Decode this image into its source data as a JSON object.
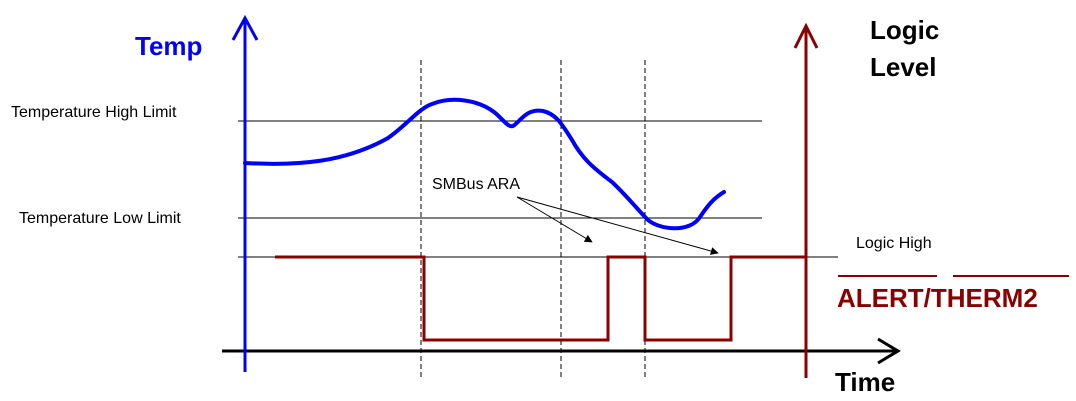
{
  "labels": {
    "temp_axis": "Temp",
    "logic_axis_line1": "Logic",
    "logic_axis_line2": "Level",
    "time_axis": "Time",
    "temp_high_limit": "Temperature High Limit",
    "temp_low_limit": "Temperature Low Limit",
    "logic_high": "Logic High",
    "smbus_ara": "SMBus ARA",
    "alert_signal": "ALERT/THERM2"
  },
  "colors": {
    "temperature_trace": "#0000ff",
    "alert_trace": "#8b0000",
    "logic_axis": "#8b0000",
    "reference_lines": "#000000"
  }
}
